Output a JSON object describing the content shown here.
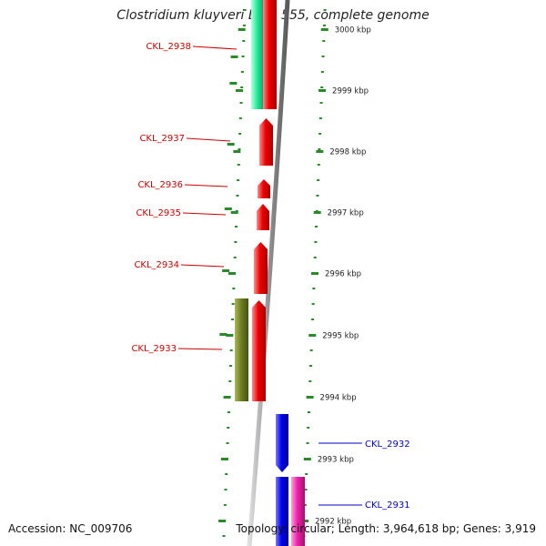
{
  "title": "Clostridium kluyveri DSM 555, complete genome",
  "accession": "Accession: NC_009706",
  "summary": "Topology: circular; Length: 3,964,618 bp; Genes: 3,919",
  "colors": {
    "backbone": "#8a8a8a",
    "tick": "#2a8a2a",
    "reverse_gene": "#ee0000",
    "forward_gene": "#0000ee",
    "cds_mint": "#22ee99",
    "cds_olive": "#6f7f22",
    "cds_pink": "#ee22aa",
    "label_reverse": "#cc0000",
    "label_forward": "#0000cc"
  },
  "axis_labels": [
    "3000 kbp",
    "2999 kbp",
    "2998 kbp",
    "2997 kbp",
    "2996 kbp",
    "2995 kbp",
    "2994 kbp",
    "2993 kbp",
    "2992 kbp"
  ],
  "gene_labels": [
    {
      "name": "CKL_2938",
      "strand": "reverse"
    },
    {
      "name": "CKL_2937",
      "strand": "reverse"
    },
    {
      "name": "CKL_2936",
      "strand": "reverse"
    },
    {
      "name": "CKL_2935",
      "strand": "reverse"
    },
    {
      "name": "CKL_2934",
      "strand": "reverse"
    },
    {
      "name": "CKL_2933",
      "strand": "reverse"
    },
    {
      "name": "CKL_2932",
      "strand": "forward"
    },
    {
      "name": "CKL_2931",
      "strand": "forward"
    }
  ]
}
